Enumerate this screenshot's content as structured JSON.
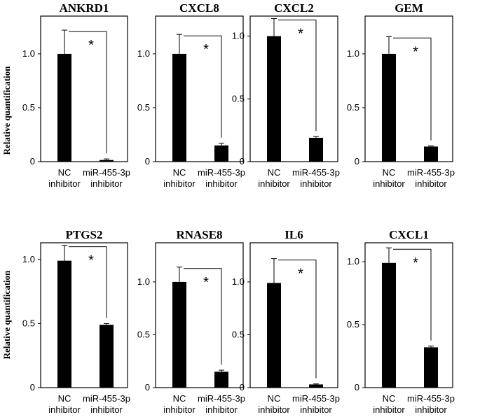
{
  "ylabel": "Relative quantification",
  "chart_data": [
    {
      "type": "bar",
      "title": "ANKRD1",
      "categories": [
        "NC inhibitor",
        "miR-455-3p inhibitor"
      ],
      "values": [
        1.0,
        0.015
      ],
      "errors": [
        0.22,
        0.01
      ],
      "ylim": [
        0,
        1.35
      ],
      "yticks": [
        "0",
        "0.5",
        "1.0"
      ],
      "significance": "*"
    },
    {
      "type": "bar",
      "title": "CXCL8",
      "categories": [
        "NC inhibitor",
        "miR-455-3p inhibitor"
      ],
      "values": [
        1.0,
        0.15
      ],
      "errors": [
        0.18,
        0.02
      ],
      "ylim": [
        0,
        1.35
      ],
      "yticks": [
        "0",
        "0.5",
        "1.0"
      ],
      "significance": "*"
    },
    {
      "type": "bar",
      "title": "CXCL2",
      "categories": [
        "NC inhibitor",
        "miR-455-3p inhibitor"
      ],
      "values": [
        1.0,
        0.19
      ],
      "errors": [
        0.14,
        0.01
      ],
      "ylim": [
        0,
        1.16
      ],
      "yticks": [
        "0",
        "0.5",
        "1.0"
      ],
      "significance": "*"
    },
    {
      "type": "bar",
      "title": "GEM",
      "categories": [
        "NC inhibitor",
        "miR-455-3p inhibitor"
      ],
      "values": [
        1.0,
        0.14
      ],
      "errors": [
        0.16,
        0.005
      ],
      "ylim": [
        0,
        1.35
      ],
      "yticks": [
        "0",
        "0.5",
        "1.0"
      ],
      "significance": "*"
    },
    {
      "type": "bar",
      "title": "PTGS2",
      "categories": [
        "NC inhibitor",
        "miR-455-3p inhibitor"
      ],
      "values": [
        0.99,
        0.49
      ],
      "errors": [
        0.12,
        0.01
      ],
      "ylim": [
        0,
        1.13
      ],
      "yticks": [
        "0",
        "0.5",
        "1.0"
      ],
      "significance": "*"
    },
    {
      "type": "bar",
      "title": "RNASE8",
      "categories": [
        "NC inhibitor",
        "miR-455-3p inhibitor"
      ],
      "values": [
        1.0,
        0.15
      ],
      "errors": [
        0.14,
        0.015
      ],
      "ylim": [
        0,
        1.37
      ],
      "yticks": [
        "0",
        "0.5",
        "1.0"
      ],
      "significance": "*"
    },
    {
      "type": "bar",
      "title": "IL6",
      "categories": [
        "NC inhibitor",
        "miR-455-3p inhibitor"
      ],
      "values": [
        0.99,
        0.03
      ],
      "errors": [
        0.23,
        0.005
      ],
      "ylim": [
        0,
        1.37
      ],
      "yticks": [
        "0",
        "0.5",
        "1.0"
      ],
      "significance": "*"
    },
    {
      "type": "bar",
      "title": "CXCL1",
      "categories": [
        "NC inhibitor",
        "miR-455-3p inhibitor"
      ],
      "values": [
        0.99,
        0.32
      ],
      "errors": [
        0.12,
        0.01
      ],
      "ylim": [
        0,
        1.15
      ],
      "yticks": [
        "0",
        "0.5",
        "1.0"
      ],
      "significance": "*"
    }
  ]
}
